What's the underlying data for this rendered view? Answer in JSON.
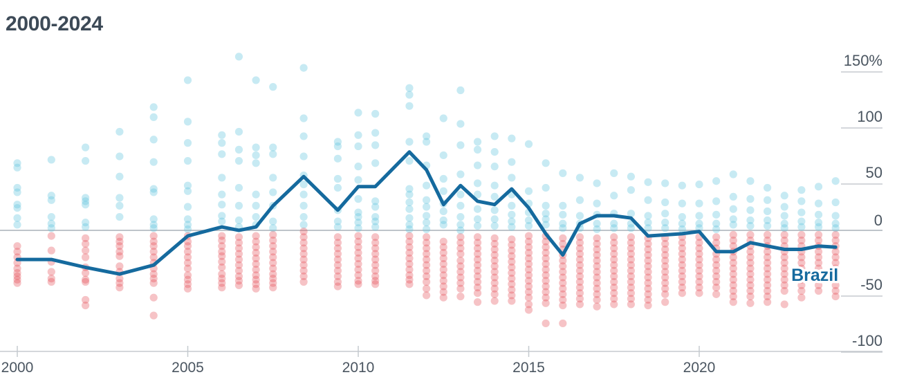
{
  "title": "2000-2024",
  "colors": {
    "positive": "#5ec4dd",
    "negative": "#e4434f",
    "highlight": "#156a9e",
    "zero_line": "#a9b1b8",
    "axis": "#c5cacf",
    "tick_text": "#4a5560"
  },
  "chart_data": {
    "type": "scatter",
    "title": "2000-2024",
    "xlabel": "",
    "ylabel": "",
    "xlim": [
      2000,
      2024.4
    ],
    "ylim": [
      -105,
      155
    ],
    "x_ticks": [
      {
        "value": 2000,
        "label": "2000"
      },
      {
        "value": 2005,
        "label": "2005"
      },
      {
        "value": 2010,
        "label": "2010"
      },
      {
        "value": 2015,
        "label": "2015"
      },
      {
        "value": 2020,
        "label": "2020"
      }
    ],
    "y_ticks": [
      {
        "value": 150,
        "label": "150%"
      },
      {
        "value": 100,
        "label": "100"
      },
      {
        "value": 50,
        "label": "50"
      },
      {
        "value": 0,
        "label": "0"
      },
      {
        "value": -50,
        "label": "-50"
      },
      {
        "value": -100,
        "label": "-100"
      }
    ],
    "grid": false,
    "highlight_series": {
      "name": "Brazil",
      "x": [
        2000,
        2001,
        2002,
        2003,
        2004,
        2005,
        2006,
        2006.5,
        2007,
        2007.5,
        2008.4,
        2009.4,
        2010,
        2010.5,
        2011.5,
        2012,
        2012.5,
        2013,
        2013.5,
        2014,
        2014.5,
        2015,
        2015.5,
        2016,
        2016.5,
        2017,
        2017.5,
        2018,
        2018.5,
        2019,
        2019.5,
        2020,
        2020.5,
        2021,
        2021.5,
        2022,
        2022.5,
        2023,
        2023.5,
        2024
      ],
      "y": [
        -26,
        -26,
        -33,
        -39,
        -31,
        -5,
        3,
        0,
        3,
        22,
        48,
        18,
        39,
        39,
        70,
        54,
        23,
        40,
        26,
        23,
        37,
        20,
        -3,
        -22,
        6,
        13,
        13,
        11,
        -5,
        -4,
        -3,
        -1,
        -19,
        -19,
        -11,
        -14,
        -17,
        -17,
        -14,
        -15
      ]
    },
    "points": [
      {
        "x": 2000,
        "values": [
          60,
          56,
          38,
          34,
          23,
          20,
          11,
          5,
          -14,
          -19,
          -24,
          -29,
          -34,
          -38,
          -41,
          -44,
          -47
        ]
      },
      {
        "x": 2001,
        "values": [
          63,
          31,
          27,
          12,
          6,
          2,
          -5,
          -18,
          -28,
          -37,
          -43,
          -46
        ]
      },
      {
        "x": 2002,
        "values": [
          74,
          62,
          29,
          26,
          23,
          7,
          3,
          -7,
          -12,
          -18,
          -24,
          -33,
          -38,
          -44,
          -46,
          -62,
          -67
        ]
      },
      {
        "x": 2003,
        "values": [
          88,
          66,
          48,
          29,
          22,
          12,
          -6,
          -10,
          -14,
          -19,
          -23,
          -32,
          -37,
          -43,
          -47,
          -51
        ]
      },
      {
        "x": 2004,
        "values": [
          110,
          101,
          81,
          61,
          37,
          34,
          10,
          5,
          2,
          -5,
          -10,
          -14,
          -19,
          -24,
          -29,
          -34,
          -39,
          -43,
          -47,
          -60,
          -76
        ]
      },
      {
        "x": 2005,
        "values": [
          134,
          97,
          78,
          62,
          40,
          35,
          21,
          10,
          5,
          1,
          -5,
          -10,
          -14,
          -19,
          -24,
          -29,
          -34,
          -40,
          -44,
          -48,
          -52
        ]
      },
      {
        "x": 2006,
        "values": [
          85,
          78,
          68,
          47,
          32,
          23,
          13,
          8,
          -5,
          -9,
          -14,
          -19,
          -23,
          -28,
          -33,
          -39,
          -43,
          -47,
          -51
        ]
      },
      {
        "x": 2006.5,
        "values": [
          155,
          88,
          72,
          62,
          38,
          22,
          9,
          3,
          -6,
          -11,
          -16,
          -21,
          -26,
          -31,
          -36,
          -41,
          -45,
          -49
        ]
      },
      {
        "x": 2007,
        "values": [
          134,
          74,
          67,
          60,
          32,
          22,
          12,
          5,
          -5,
          -10,
          -15,
          -20,
          -25,
          -30,
          -35,
          -40,
          -44,
          -48,
          -52
        ]
      },
      {
        "x": 2007.5,
        "values": [
          128,
          74,
          68,
          47,
          34,
          22,
          8,
          2,
          -4,
          -9,
          -14,
          -19,
          -24,
          -29,
          -34,
          -39,
          -43,
          -47,
          -51
        ]
      },
      {
        "x": 2008.4,
        "values": [
          145,
          100,
          84,
          66,
          49,
          41,
          32,
          22,
          12,
          5,
          -1,
          -6,
          -11,
          -16,
          -21,
          -26,
          -31,
          -36,
          -41,
          -46
        ]
      },
      {
        "x": 2009.4,
        "values": [
          79,
          75,
          64,
          46,
          38,
          18,
          8,
          3,
          -6,
          -11,
          -16,
          -21,
          -26,
          -31,
          -36,
          -41,
          -46,
          -50
        ]
      },
      {
        "x": 2010,
        "values": [
          105,
          85,
          75,
          57,
          45,
          28,
          16,
          12,
          7,
          2,
          -5,
          -10,
          -15,
          -20,
          -25,
          -30,
          -35,
          -40,
          -45,
          -48
        ]
      },
      {
        "x": 2010.5,
        "values": [
          104,
          87,
          76,
          60,
          26,
          21,
          12,
          8,
          3,
          -6,
          -11,
          -16,
          -21,
          -26,
          -31,
          -36,
          -41,
          -45,
          -48
        ]
      },
      {
        "x": 2011.5,
        "values": [
          127,
          121,
          111,
          79,
          62,
          37,
          32,
          25,
          19,
          11,
          5,
          1,
          -5,
          -10,
          -15,
          -20,
          -25,
          -30,
          -35,
          -40,
          -44,
          -48
        ]
      },
      {
        "x": 2012,
        "values": [
          84,
          79,
          58,
          40,
          27,
          21,
          13,
          7,
          1,
          -6,
          -11,
          -16,
          -21,
          -26,
          -31,
          -36,
          -41,
          -46,
          -52,
          -58
        ]
      },
      {
        "x": 2012.5,
        "values": [
          100,
          67,
          46,
          35,
          24,
          17,
          9,
          5,
          -10,
          -15,
          -20,
          -25,
          -30,
          -35,
          -40,
          -45,
          -50,
          -55,
          -60
        ]
      },
      {
        "x": 2013,
        "values": [
          125,
          95,
          76,
          50,
          32,
          22,
          12,
          5,
          0,
          -6,
          -11,
          -16,
          -21,
          -27,
          -32,
          -37,
          -42,
          -47,
          -52,
          -59
        ]
      },
      {
        "x": 2013.5,
        "values": [
          79,
          72,
          58,
          42,
          32,
          19,
          10,
          4,
          -6,
          -11,
          -16,
          -21,
          -26,
          -31,
          -36,
          -41,
          -46,
          -51,
          -56,
          -64
        ]
      },
      {
        "x": 2014,
        "values": [
          84,
          70,
          57,
          40,
          30,
          18,
          10,
          4,
          -7,
          -12,
          -17,
          -22,
          -27,
          -32,
          -37,
          -42,
          -47,
          -52,
          -57,
          -63
        ]
      },
      {
        "x": 2014.5,
        "values": [
          82,
          61,
          47,
          32,
          22,
          14,
          8,
          3,
          -8,
          -13,
          -18,
          -23,
          -28,
          -33,
          -38,
          -43,
          -48,
          -53,
          -58,
          -63
        ]
      },
      {
        "x": 2015,
        "values": [
          77,
          35,
          24,
          16,
          9,
          4,
          -5,
          -10,
          -15,
          -20,
          -25,
          -30,
          -35,
          -40,
          -45,
          -50,
          -55,
          -60,
          -66,
          -71
        ]
      },
      {
        "x": 2015.5,
        "values": [
          60,
          38,
          22,
          15,
          10,
          5,
          -5,
          -10,
          -15,
          -20,
          -25,
          -30,
          -35,
          -40,
          -45,
          -50,
          -55,
          -60,
          -65,
          -83
        ]
      },
      {
        "x": 2016,
        "values": [
          51,
          22,
          14,
          6,
          2,
          -7,
          -12,
          -17,
          -22,
          -27,
          -32,
          -37,
          -42,
          -47,
          -52,
          -57,
          -62,
          -67,
          -83
        ]
      },
      {
        "x": 2016.5,
        "values": [
          47,
          27,
          13,
          6,
          2,
          -6,
          -11,
          -16,
          -21,
          -26,
          -31,
          -36,
          -41,
          -46,
          -51,
          -56,
          -61,
          -66
        ]
      },
      {
        "x": 2017,
        "values": [
          42,
          24,
          14,
          6,
          1,
          -7,
          -12,
          -17,
          -22,
          -27,
          -32,
          -37,
          -42,
          -47,
          -52,
          -57,
          -62,
          -68
        ]
      },
      {
        "x": 2017.5,
        "values": [
          51,
          31,
          15,
          6,
          2,
          -6,
          -11,
          -16,
          -21,
          -26,
          -31,
          -36,
          -41,
          -46,
          -51,
          -56,
          -61,
          -66
        ]
      },
      {
        "x": 2018,
        "values": [
          48,
          36,
          15,
          6,
          2,
          -6,
          -11,
          -16,
          -21,
          -26,
          -31,
          -36,
          -41,
          -46,
          -51,
          -56,
          -61,
          -66
        ]
      },
      {
        "x": 2018.5,
        "values": [
          43,
          27,
          13,
          7,
          2,
          -7,
          -12,
          -17,
          -22,
          -27,
          -32,
          -37,
          -42,
          -47,
          -52,
          -57,
          -62,
          -67
        ]
      },
      {
        "x": 2019,
        "values": [
          42,
          25,
          15,
          7,
          2,
          -7,
          -12,
          -17,
          -22,
          -27,
          -32,
          -37,
          -42,
          -47,
          -52,
          -57,
          -64
        ]
      },
      {
        "x": 2019.5,
        "values": [
          40,
          24,
          12,
          6,
          1,
          -6,
          -11,
          -16,
          -21,
          -26,
          -31,
          -36,
          -41,
          -46,
          -51,
          -56
        ]
      },
      {
        "x": 2020,
        "values": [
          41,
          24,
          13,
          6,
          2,
          -6,
          -11,
          -16,
          -21,
          -26,
          -31,
          -36,
          -41,
          -46,
          -51,
          -56
        ]
      },
      {
        "x": 2020.5,
        "values": [
          44,
          26,
          14,
          6,
          1,
          -6,
          -11,
          -16,
          -21,
          -26,
          -31,
          -36,
          -41,
          -46,
          -51,
          -57
        ]
      },
      {
        "x": 2021,
        "values": [
          50,
          30,
          19,
          10,
          5,
          -4,
          -9,
          -14,
          -19,
          -24,
          -29,
          -34,
          -39,
          -44,
          -49,
          -54,
          -59,
          -64
        ]
      },
      {
        "x": 2021.5,
        "values": [
          44,
          28,
          18,
          9,
          4,
          -4,
          -9,
          -14,
          -19,
          -24,
          -29,
          -34,
          -39,
          -44,
          -49,
          -54,
          -59,
          -65
        ]
      },
      {
        "x": 2022,
        "values": [
          38,
          27,
          17,
          9,
          4,
          -4,
          -9,
          -14,
          -19,
          -24,
          -29,
          -34,
          -39,
          -44,
          -49,
          -54,
          -59,
          -64
        ]
      },
      {
        "x": 2022.5,
        "values": [
          31,
          21,
          13,
          6,
          2,
          -4,
          -9,
          -14,
          -19,
          -24,
          -29,
          -34,
          -39,
          -44,
          -49,
          -54,
          -66
        ]
      },
      {
        "x": 2023,
        "values": [
          36,
          26,
          16,
          8,
          3,
          -4,
          -9,
          -14,
          -19,
          -24,
          -29,
          -34,
          -39,
          -44,
          -49,
          -54,
          -60
        ]
      },
      {
        "x": 2023.5,
        "values": [
          39,
          24,
          14,
          7,
          3,
          -4,
          -9,
          -14,
          -19,
          -24,
          -29,
          -34,
          -39,
          -44,
          -49,
          -54
        ]
      },
      {
        "x": 2024,
        "values": [
          44,
          25,
          13,
          6,
          2,
          -4,
          -9,
          -14,
          -19,
          -24,
          -29,
          -34,
          -39,
          -44,
          -49,
          -54,
          -59
        ]
      }
    ]
  }
}
